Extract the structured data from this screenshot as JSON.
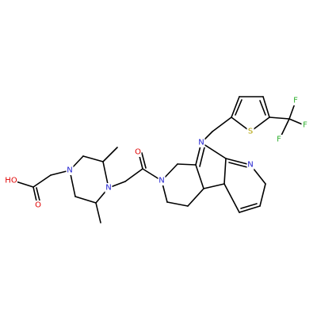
{
  "atoms": [
    {
      "label": "HO",
      "element": "O"
    },
    {
      "label": "O",
      "element": "O"
    },
    {
      "label": "N",
      "element": "N"
    },
    {
      "label": "N",
      "element": "N"
    },
    {
      "label": "O",
      "element": "O"
    },
    {
      "label": "N",
      "element": "N"
    },
    {
      "label": "N",
      "element": "N"
    },
    {
      "label": "N",
      "element": "N"
    },
    {
      "label": "S",
      "element": "S"
    },
    {
      "label": "F",
      "element": "F"
    },
    {
      "label": "F",
      "element": "F"
    },
    {
      "label": "F",
      "element": "F"
    }
  ]
}
